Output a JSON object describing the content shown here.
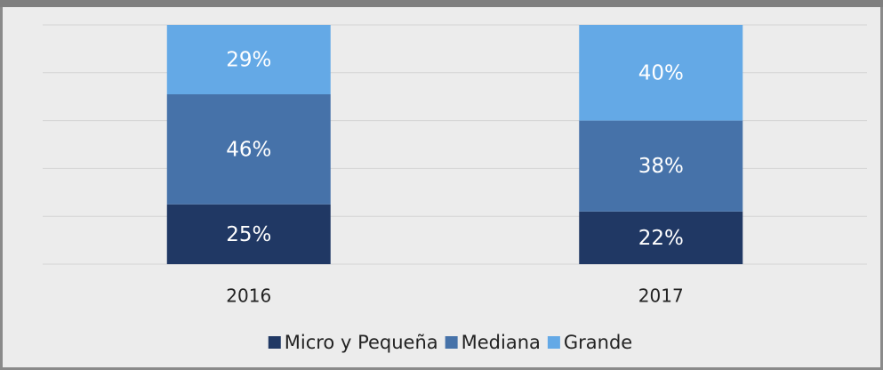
{
  "chart_data": {
    "type": "stacked_bar",
    "categories": [
      "2016",
      "2017"
    ],
    "series": [
      {
        "name": "Micro y Pequeña",
        "color": "#203864",
        "values": [
          25,
          22
        ],
        "value_labels": [
          "25%",
          "22%"
        ]
      },
      {
        "name": "Mediana",
        "color": "#4672a9",
        "values": [
          46,
          38
        ],
        "value_labels": [
          "46%",
          "38%"
        ]
      },
      {
        "name": "Grande",
        "color": "#64a9e6",
        "values": [
          29,
          40
        ],
        "value_labels": [
          "29%",
          "40%"
        ]
      }
    ],
    "ylim": [
      0,
      100
    ],
    "yticks": [
      0,
      20,
      40,
      60,
      80,
      100
    ],
    "grid": true,
    "legend": "bottom"
  }
}
